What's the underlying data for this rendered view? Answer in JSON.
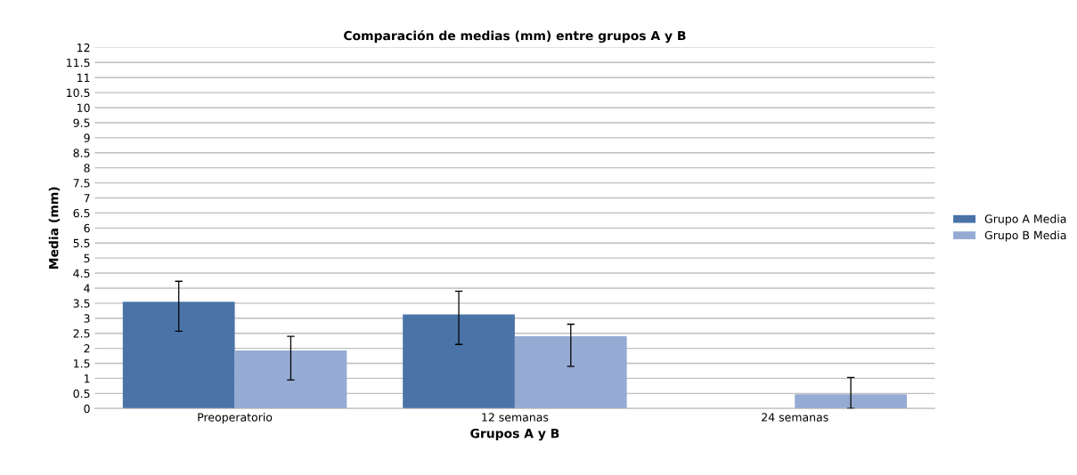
{
  "chart_data": {
    "type": "bar",
    "title": "Comparación de medias (mm) entre grupos A y B",
    "xlabel": "Grupos A y B",
    "ylabel": "Media (mm)",
    "categories": [
      "Preoperatorio",
      "12 semanas",
      "24 semanas"
    ],
    "series": [
      {
        "name": "Grupo A Media",
        "color": "#4a74a8",
        "values": [
          3.55,
          3.13,
          null
        ],
        "errors": [
          [
            2.57,
            4.23
          ],
          [
            2.13,
            3.9
          ],
          null
        ]
      },
      {
        "name": "Grupo B Media",
        "color": "#95abd3",
        "values": [
          1.93,
          2.4,
          0.47
        ],
        "errors": [
          [
            0.95,
            2.4
          ],
          [
            1.4,
            2.8
          ],
          [
            0,
            1.03
          ]
        ]
      }
    ],
    "ylim": [
      0,
      12
    ],
    "yticks": [
      0,
      0.5,
      1,
      1.5,
      2,
      2.5,
      3,
      3.5,
      4,
      4.5,
      5,
      5.5,
      6,
      6.5,
      7,
      7.5,
      8,
      8.5,
      9,
      9.5,
      10,
      10.5,
      11,
      11.5,
      12
    ],
    "grid": "y",
    "legend": "right"
  }
}
